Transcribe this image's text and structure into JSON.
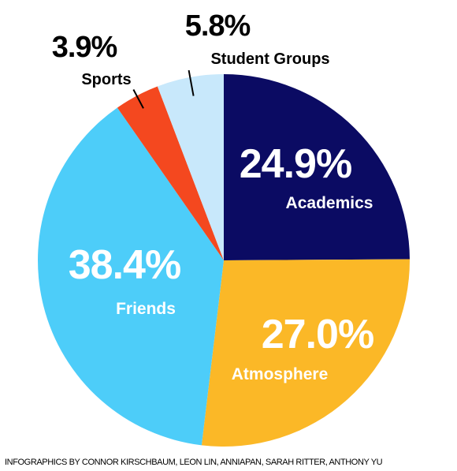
{
  "chart_data": {
    "type": "pie",
    "categories": [
      "Academics",
      "Atmosphere",
      "Friends",
      "Sports",
      "Student Groups"
    ],
    "values": [
      24.9,
      27.0,
      38.4,
      3.9,
      5.8
    ],
    "value_labels": [
      "24.9%",
      "27.0%",
      "38.4%",
      "3.9%",
      "5.8%"
    ],
    "colors": [
      "#0b0b63",
      "#fbb827",
      "#4dcdf9",
      "#f4481f",
      "#c8e8fb"
    ],
    "start": "12 o'clock",
    "direction": "clockwise",
    "legend": "none"
  },
  "credit": "INFOGRAPHICS BY CONNOR KIRSCHBAUM, LEON LIN, ANNIAPAN, SARAH RITTER, ANTHONY YU"
}
